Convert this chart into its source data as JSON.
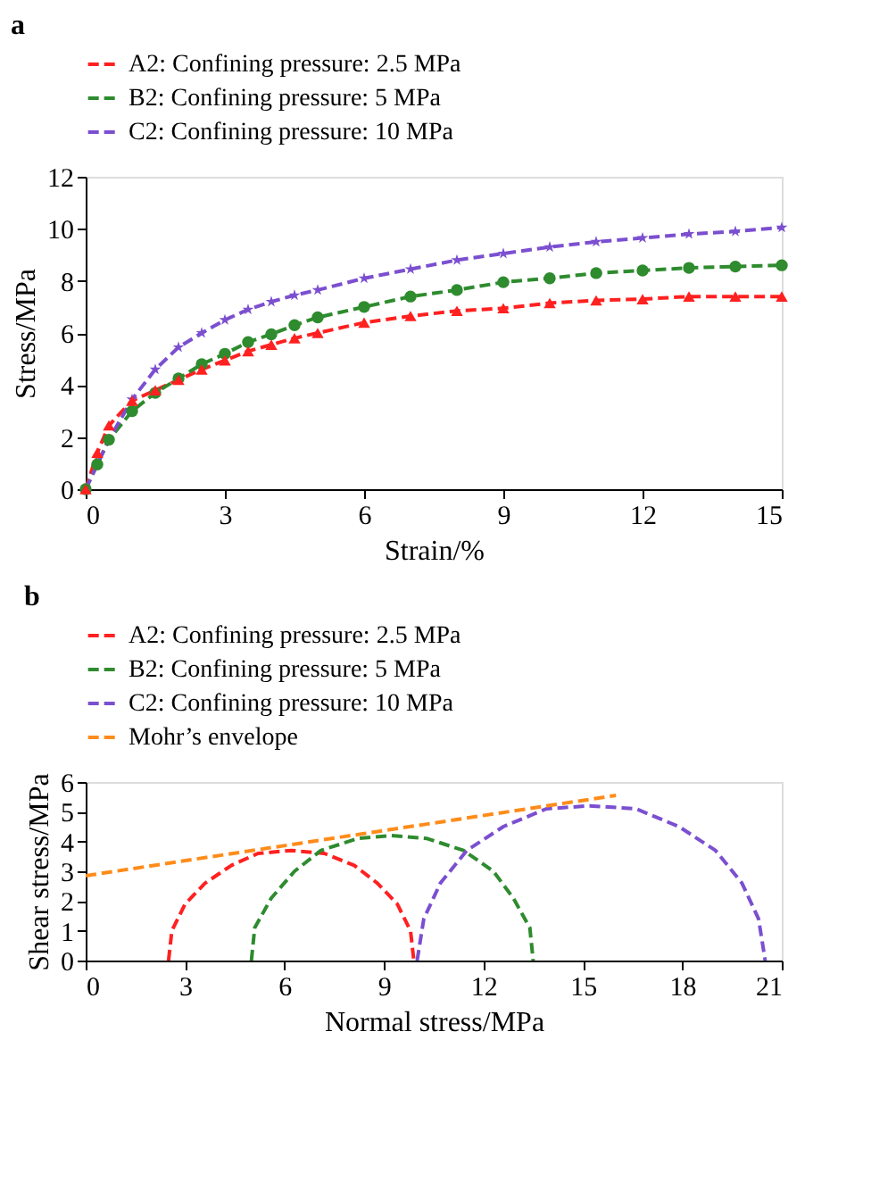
{
  "chart_data": [
    {
      "type": "line",
      "title": "a",
      "xlabel": "Strain/%",
      "ylabel": "Stress/MPa",
      "xlim": [
        0,
        15
      ],
      "ylim": [
        0,
        12
      ],
      "xticks": [
        0,
        3,
        6,
        9,
        12,
        15
      ],
      "yticks": [
        0,
        2,
        4,
        6,
        8,
        10,
        12
      ],
      "grid": false,
      "legend": "top",
      "x": [
        0,
        0.25,
        0.5,
        1,
        1.5,
        2,
        2.5,
        3,
        3.5,
        4,
        4.5,
        5,
        6,
        7,
        8,
        9,
        10,
        11,
        12,
        13,
        14,
        15
      ],
      "series": [
        {
          "name": "A2: Confining pressure: 2.5 MPa",
          "color": "#ff2020",
          "marker": "triangle",
          "line_style": "dashed",
          "values": [
            0,
            1.4,
            2.45,
            3.4,
            3.8,
            4.2,
            4.6,
            4.95,
            5.3,
            5.55,
            5.8,
            6.0,
            6.4,
            6.65,
            6.85,
            6.95,
            7.15,
            7.25,
            7.3,
            7.4,
            7.4,
            7.4
          ]
        },
        {
          "name": "B2: Confining pressure: 5 MPa",
          "color": "#2e8b2e",
          "marker": "circle",
          "line_style": "dashed",
          "values": [
            0,
            0.95,
            1.9,
            3.0,
            3.7,
            4.25,
            4.8,
            5.2,
            5.65,
            5.95,
            6.3,
            6.6,
            7.0,
            7.4,
            7.65,
            7.95,
            8.1,
            8.3,
            8.4,
            8.5,
            8.55,
            8.6
          ]
        },
        {
          "name": "C2: Confining pressure: 10 MPa",
          "color": "#7b4fd0",
          "marker": "star",
          "line_style": "dashed",
          "values": [
            0,
            null,
            1.9,
            3.45,
            4.6,
            5.45,
            6.0,
            6.5,
            6.9,
            7.2,
            7.45,
            7.65,
            8.1,
            8.45,
            8.8,
            9.05,
            9.3,
            9.5,
            9.65,
            9.8,
            9.9,
            10.05
          ]
        }
      ]
    },
    {
      "type": "line",
      "title": "b",
      "xlabel": "Normal stress/MPa",
      "ylabel": "Shear stress/MPa",
      "xlim": [
        0,
        21
      ],
      "ylim": [
        0,
        6
      ],
      "xticks": [
        0,
        3,
        6,
        9,
        12,
        15,
        18,
        21
      ],
      "yticks": [
        0,
        1,
        2,
        3,
        4,
        5,
        6
      ],
      "grid": false,
      "legend": "top",
      "series": [
        {
          "name": "A2: Confining pressure: 2.5 MPa",
          "color": "#ff2020",
          "line_style": "dashed",
          "x": [
            2.5,
            2.6,
            3.0,
            3.6,
            4.4,
            5.2,
            6.2,
            7.2,
            8.1,
            8.8,
            9.4,
            9.8,
            9.9
          ],
          "values": [
            0,
            1.0,
            1.9,
            2.6,
            3.2,
            3.6,
            3.7,
            3.6,
            3.2,
            2.6,
            1.9,
            1.0,
            0
          ]
        },
        {
          "name": "B2: Confining pressure: 5 MPa",
          "color": "#2e8b2e",
          "line_style": "dashed",
          "x": [
            5.0,
            5.1,
            5.6,
            6.3,
            7.1,
            8.2,
            9.2,
            10.3,
            11.4,
            12.3,
            12.9,
            13.4,
            13.5
          ],
          "values": [
            0,
            1.1,
            2.1,
            3.0,
            3.7,
            4.1,
            4.2,
            4.1,
            3.7,
            3.0,
            2.1,
            1.1,
            0
          ]
        },
        {
          "name": "C2: Confining pressure: 10 MPa",
          "color": "#7b4fd0",
          "line_style": "dashed",
          "x": [
            10.0,
            10.2,
            10.7,
            11.5,
            12.6,
            13.9,
            15.2,
            16.6,
            17.9,
            19.0,
            19.8,
            20.3,
            20.5
          ],
          "values": [
            0,
            1.4,
            2.6,
            3.7,
            4.5,
            5.1,
            5.2,
            5.1,
            4.5,
            3.7,
            2.6,
            1.4,
            0
          ]
        },
        {
          "name": "Mohr’s envelope",
          "color": "#ff8c1a",
          "line_style": "dashed",
          "x": [
            0,
            16
          ],
          "values": [
            2.85,
            5.55
          ]
        }
      ]
    }
  ]
}
